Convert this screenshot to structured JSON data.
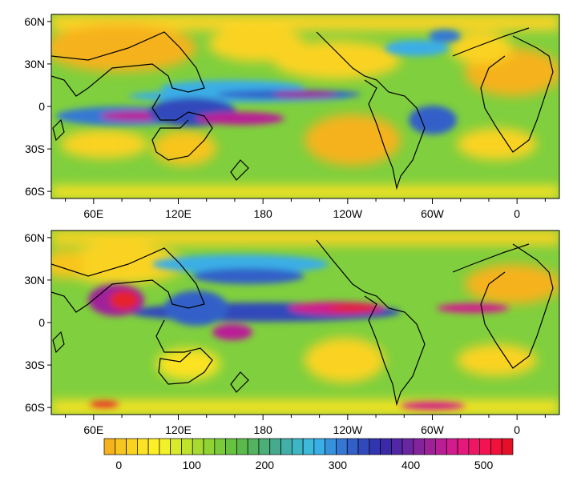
{
  "panels": [
    {
      "id": "top",
      "lat_labels": [
        "60N",
        "30N",
        "0",
        "30S",
        "60S"
      ],
      "lat_values": [
        60,
        30,
        0,
        -30,
        -60
      ],
      "lon_labels": [
        "60E",
        "120E",
        "180",
        "120W",
        "60W",
        "0"
      ],
      "lon_values": [
        60,
        120,
        180,
        240,
        300,
        360
      ]
    },
    {
      "id": "bottom",
      "lat_labels": [
        "60N",
        "30N",
        "0",
        "30S",
        "60S"
      ],
      "lat_values": [
        60,
        30,
        0,
        -30,
        -60
      ],
      "lon_labels": [
        "60E",
        "120E",
        "180",
        "120W",
        "60W",
        "0"
      ],
      "lon_values": [
        60,
        120,
        180,
        240,
        300,
        360
      ]
    }
  ],
  "map_extent": {
    "lon_min": 30,
    "lon_max": 390,
    "lat_min": -65,
    "lat_max": 65
  },
  "colorbar": {
    "labels": [
      "0",
      "100",
      "200",
      "300",
      "400",
      "500"
    ],
    "label_values": [
      0,
      100,
      200,
      300,
      400,
      500
    ],
    "min": -20,
    "max": 540,
    "step": 20,
    "colors": [
      "#f6b21d",
      "#f8c51f",
      "#fad321",
      "#fbe224",
      "#fcef26",
      "#f3f02a",
      "#d8ea2b",
      "#bfe22d",
      "#a7da31",
      "#8fd335",
      "#7acb3a",
      "#67c23f",
      "#5cba4d",
      "#53b361",
      "#4cae78",
      "#46aa8f",
      "#42b0a8",
      "#3fb6c4",
      "#3db9dc",
      "#3aaee6",
      "#3792de",
      "#3478d4",
      "#3260c8",
      "#3049bb",
      "#3235b0",
      "#3b2aa8",
      "#5227a4",
      "#6a25a0",
      "#85239c",
      "#a0209a",
      "#ba1e97",
      "#d21c8d",
      "#e5197b",
      "#f01666",
      "#f31350",
      "#f1113a",
      "#e50f28"
    ]
  },
  "palette": {
    "land_coast": "#000000",
    "base_green": "#7fcf3e",
    "subtropic_yellow": "#fbd425",
    "orange_dry": "#f6b21d",
    "blue_wet": "#3aaee6",
    "purple_wet": "#4a2ca8",
    "magenta_wet": "#e5197b",
    "red_max": "#e5212c"
  }
}
